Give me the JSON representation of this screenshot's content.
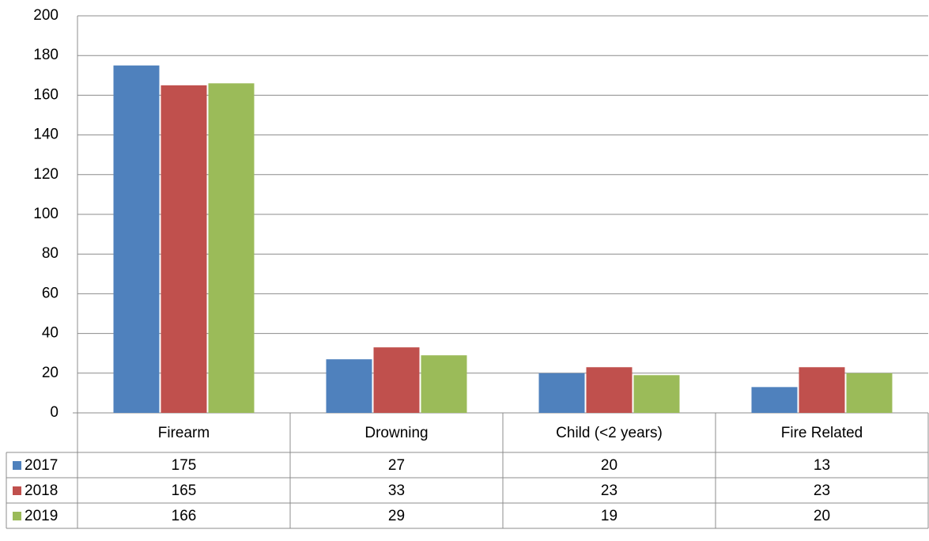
{
  "chart_data": {
    "type": "bar",
    "categories": [
      "Firearm",
      "Drowning",
      "Child (<2 years)",
      "Fire Related"
    ],
    "series": [
      {
        "name": "2017",
        "color": "#4f81bd",
        "values": [
          175,
          27,
          20,
          13
        ]
      },
      {
        "name": "2018",
        "color": "#c0504d",
        "values": [
          165,
          33,
          23,
          23
        ]
      },
      {
        "name": "2019",
        "color": "#9bbb59",
        "values": [
          166,
          29,
          19,
          20
        ]
      }
    ],
    "ylim": [
      0,
      200
    ],
    "yticks": [
      0,
      20,
      40,
      60,
      80,
      100,
      120,
      140,
      160,
      180,
      200
    ],
    "grid": true
  }
}
